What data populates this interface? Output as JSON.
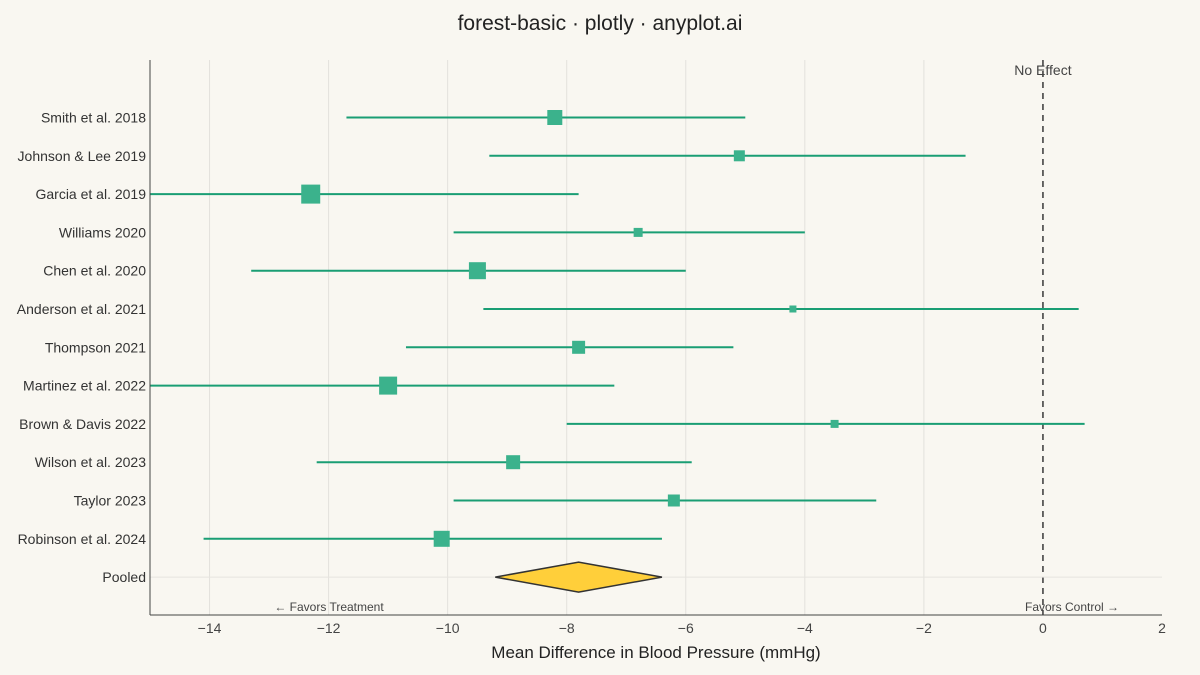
{
  "chart_data": {
    "type": "forest",
    "title": "forest-basic · plotly · anyplot.ai",
    "xlabel": "Mean Difference in Blood Pressure (mmHg)",
    "xlim": [
      -15,
      2
    ],
    "xticks": [
      -14,
      -12,
      -10,
      -8,
      -6,
      -4,
      -2,
      0,
      2
    ],
    "xtick_labels": [
      "−14",
      "−12",
      "−10",
      "−8",
      "−6",
      "−4",
      "−2",
      "0",
      "2"
    ],
    "grid": true,
    "reference_line": {
      "x": 0,
      "label": "No Effect"
    },
    "annotations": {
      "left": "← Favors Treatment",
      "right": "Favors Control →"
    },
    "colors": {
      "study": "#1a9e74",
      "marker": "#3bb28c",
      "pooled": "#ffcf3a",
      "pooled_edge": "#333333",
      "reference": "#444444"
    },
    "studies": [
      {
        "label": "Smith et al. 2018",
        "estimate": -8.2,
        "ci_low": -11.7,
        "ci_high": -5.0,
        "weight": 7.5
      },
      {
        "label": "Johnson & Lee 2019",
        "estimate": -5.1,
        "ci_low": -9.3,
        "ci_high": -1.3,
        "weight": 5.5
      },
      {
        "label": "Garcia et al. 2019",
        "estimate": -12.3,
        "ci_low": -15.0,
        "ci_high": -7.8,
        "weight": 9.5
      },
      {
        "label": "Williams 2020",
        "estimate": -6.8,
        "ci_low": -9.9,
        "ci_high": -4.0,
        "weight": 4.5
      },
      {
        "label": "Chen et al. 2020",
        "estimate": -9.5,
        "ci_low": -13.3,
        "ci_high": -6.0,
        "weight": 8.5
      },
      {
        "label": "Anderson et al. 2021",
        "estimate": -4.2,
        "ci_low": -9.4,
        "ci_high": 0.6,
        "weight": 3.5
      },
      {
        "label": "Thompson 2021",
        "estimate": -7.8,
        "ci_low": -10.7,
        "ci_high": -5.2,
        "weight": 6.5
      },
      {
        "label": "Martinez et al. 2022",
        "estimate": -11.0,
        "ci_low": -15.0,
        "ci_high": -7.2,
        "weight": 9.0
      },
      {
        "label": "Brown & Davis 2022",
        "estimate": -3.5,
        "ci_low": -8.0,
        "ci_high": 0.7,
        "weight": 4.0
      },
      {
        "label": "Wilson et al. 2023",
        "estimate": -8.9,
        "ci_low": -12.2,
        "ci_high": -5.9,
        "weight": 7.0
      },
      {
        "label": "Taylor 2023",
        "estimate": -6.2,
        "ci_low": -9.9,
        "ci_high": -2.8,
        "weight": 6.0
      },
      {
        "label": "Robinson et al. 2024",
        "estimate": -10.1,
        "ci_low": -14.1,
        "ci_high": -6.4,
        "weight": 8.0
      }
    ],
    "pooled": {
      "label": "Pooled",
      "estimate": -7.8,
      "ci_low": -9.2,
      "ci_high": -6.4
    }
  }
}
